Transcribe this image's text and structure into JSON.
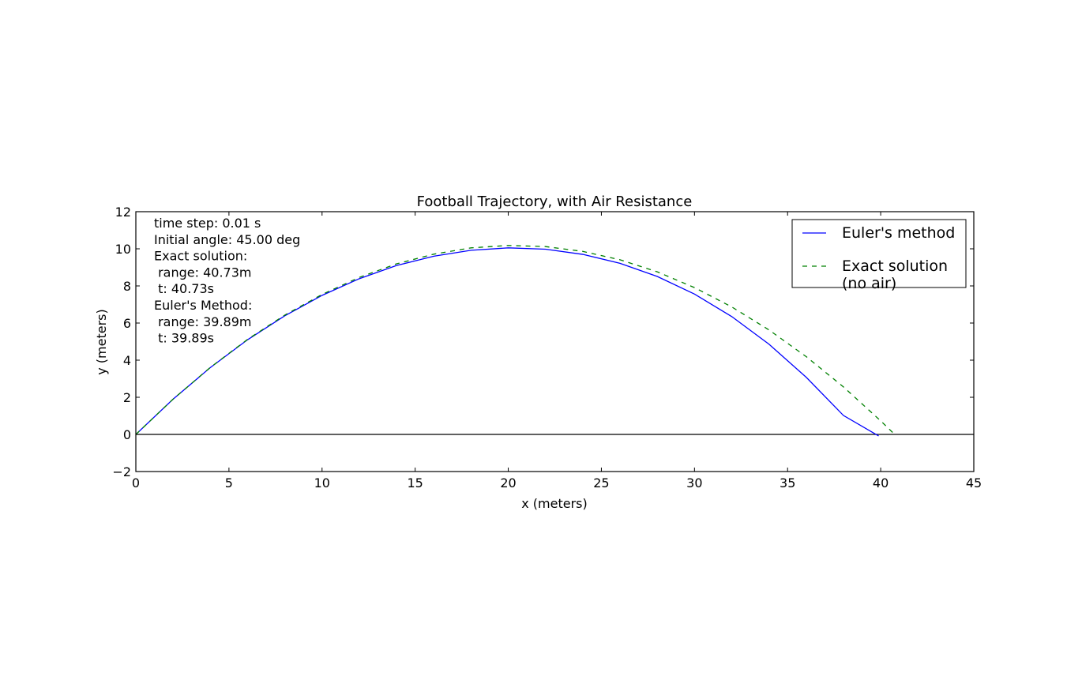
{
  "chart_data": {
    "type": "line",
    "title": "Football Trajectory, with Air Resistance",
    "xlabel": "x (meters)",
    "ylabel": "y (meters)",
    "xlim": [
      0,
      45
    ],
    "ylim": [
      -2,
      12
    ],
    "xticks": [
      0,
      5,
      10,
      15,
      20,
      25,
      30,
      35,
      40,
      45
    ],
    "xtick_labels": [
      "0",
      "5",
      "10",
      "15",
      "20",
      "25",
      "30",
      "35",
      "40",
      "45"
    ],
    "yticks": [
      -2,
      0,
      2,
      4,
      6,
      8,
      10,
      12
    ],
    "ytick_labels": [
      "−2",
      "0",
      "2",
      "4",
      "6",
      "8",
      "10",
      "12"
    ],
    "grid": false,
    "legend_position": "top-right",
    "annotation_lines": [
      "time step: 0.01 s",
      "Initial angle: 45.00 deg",
      "Exact solution:",
      " range: 40.73m",
      " t: 40.73s",
      "Euler's Method:",
      " range: 39.89m",
      " t: 39.89s"
    ],
    "hline_y": 0,
    "series": [
      {
        "name": "Euler's method",
        "color": "#0000ff",
        "style": "solid",
        "x": [
          0,
          2,
          4,
          6,
          8,
          10,
          12,
          14,
          16,
          18,
          20,
          22,
          24,
          26,
          28,
          30,
          32,
          34,
          36,
          38,
          39.89
        ],
        "y": [
          0,
          1.9,
          3.6,
          5.1,
          6.39,
          7.49,
          8.39,
          9.1,
          9.6,
          9.92,
          10.05,
          9.98,
          9.7,
          9.22,
          8.51,
          7.56,
          6.35,
          4.86,
          3.08,
          1.02,
          -0.08
        ]
      },
      {
        "name": "Exact solution\n(no air)",
        "color": "#008000",
        "style": "dashed",
        "x": [
          0,
          2,
          4,
          6,
          8,
          10,
          12,
          14,
          16,
          18,
          20,
          22,
          24,
          26,
          28,
          30,
          32,
          34,
          36,
          38,
          40,
          40.73
        ],
        "y": [
          0,
          1.9,
          3.61,
          5.12,
          6.43,
          7.54,
          8.46,
          9.19,
          9.71,
          10.05,
          10.18,
          10.12,
          9.86,
          9.41,
          8.76,
          7.91,
          6.87,
          5.63,
          4.19,
          2.56,
          0.73,
          0.02
        ]
      }
    ]
  }
}
